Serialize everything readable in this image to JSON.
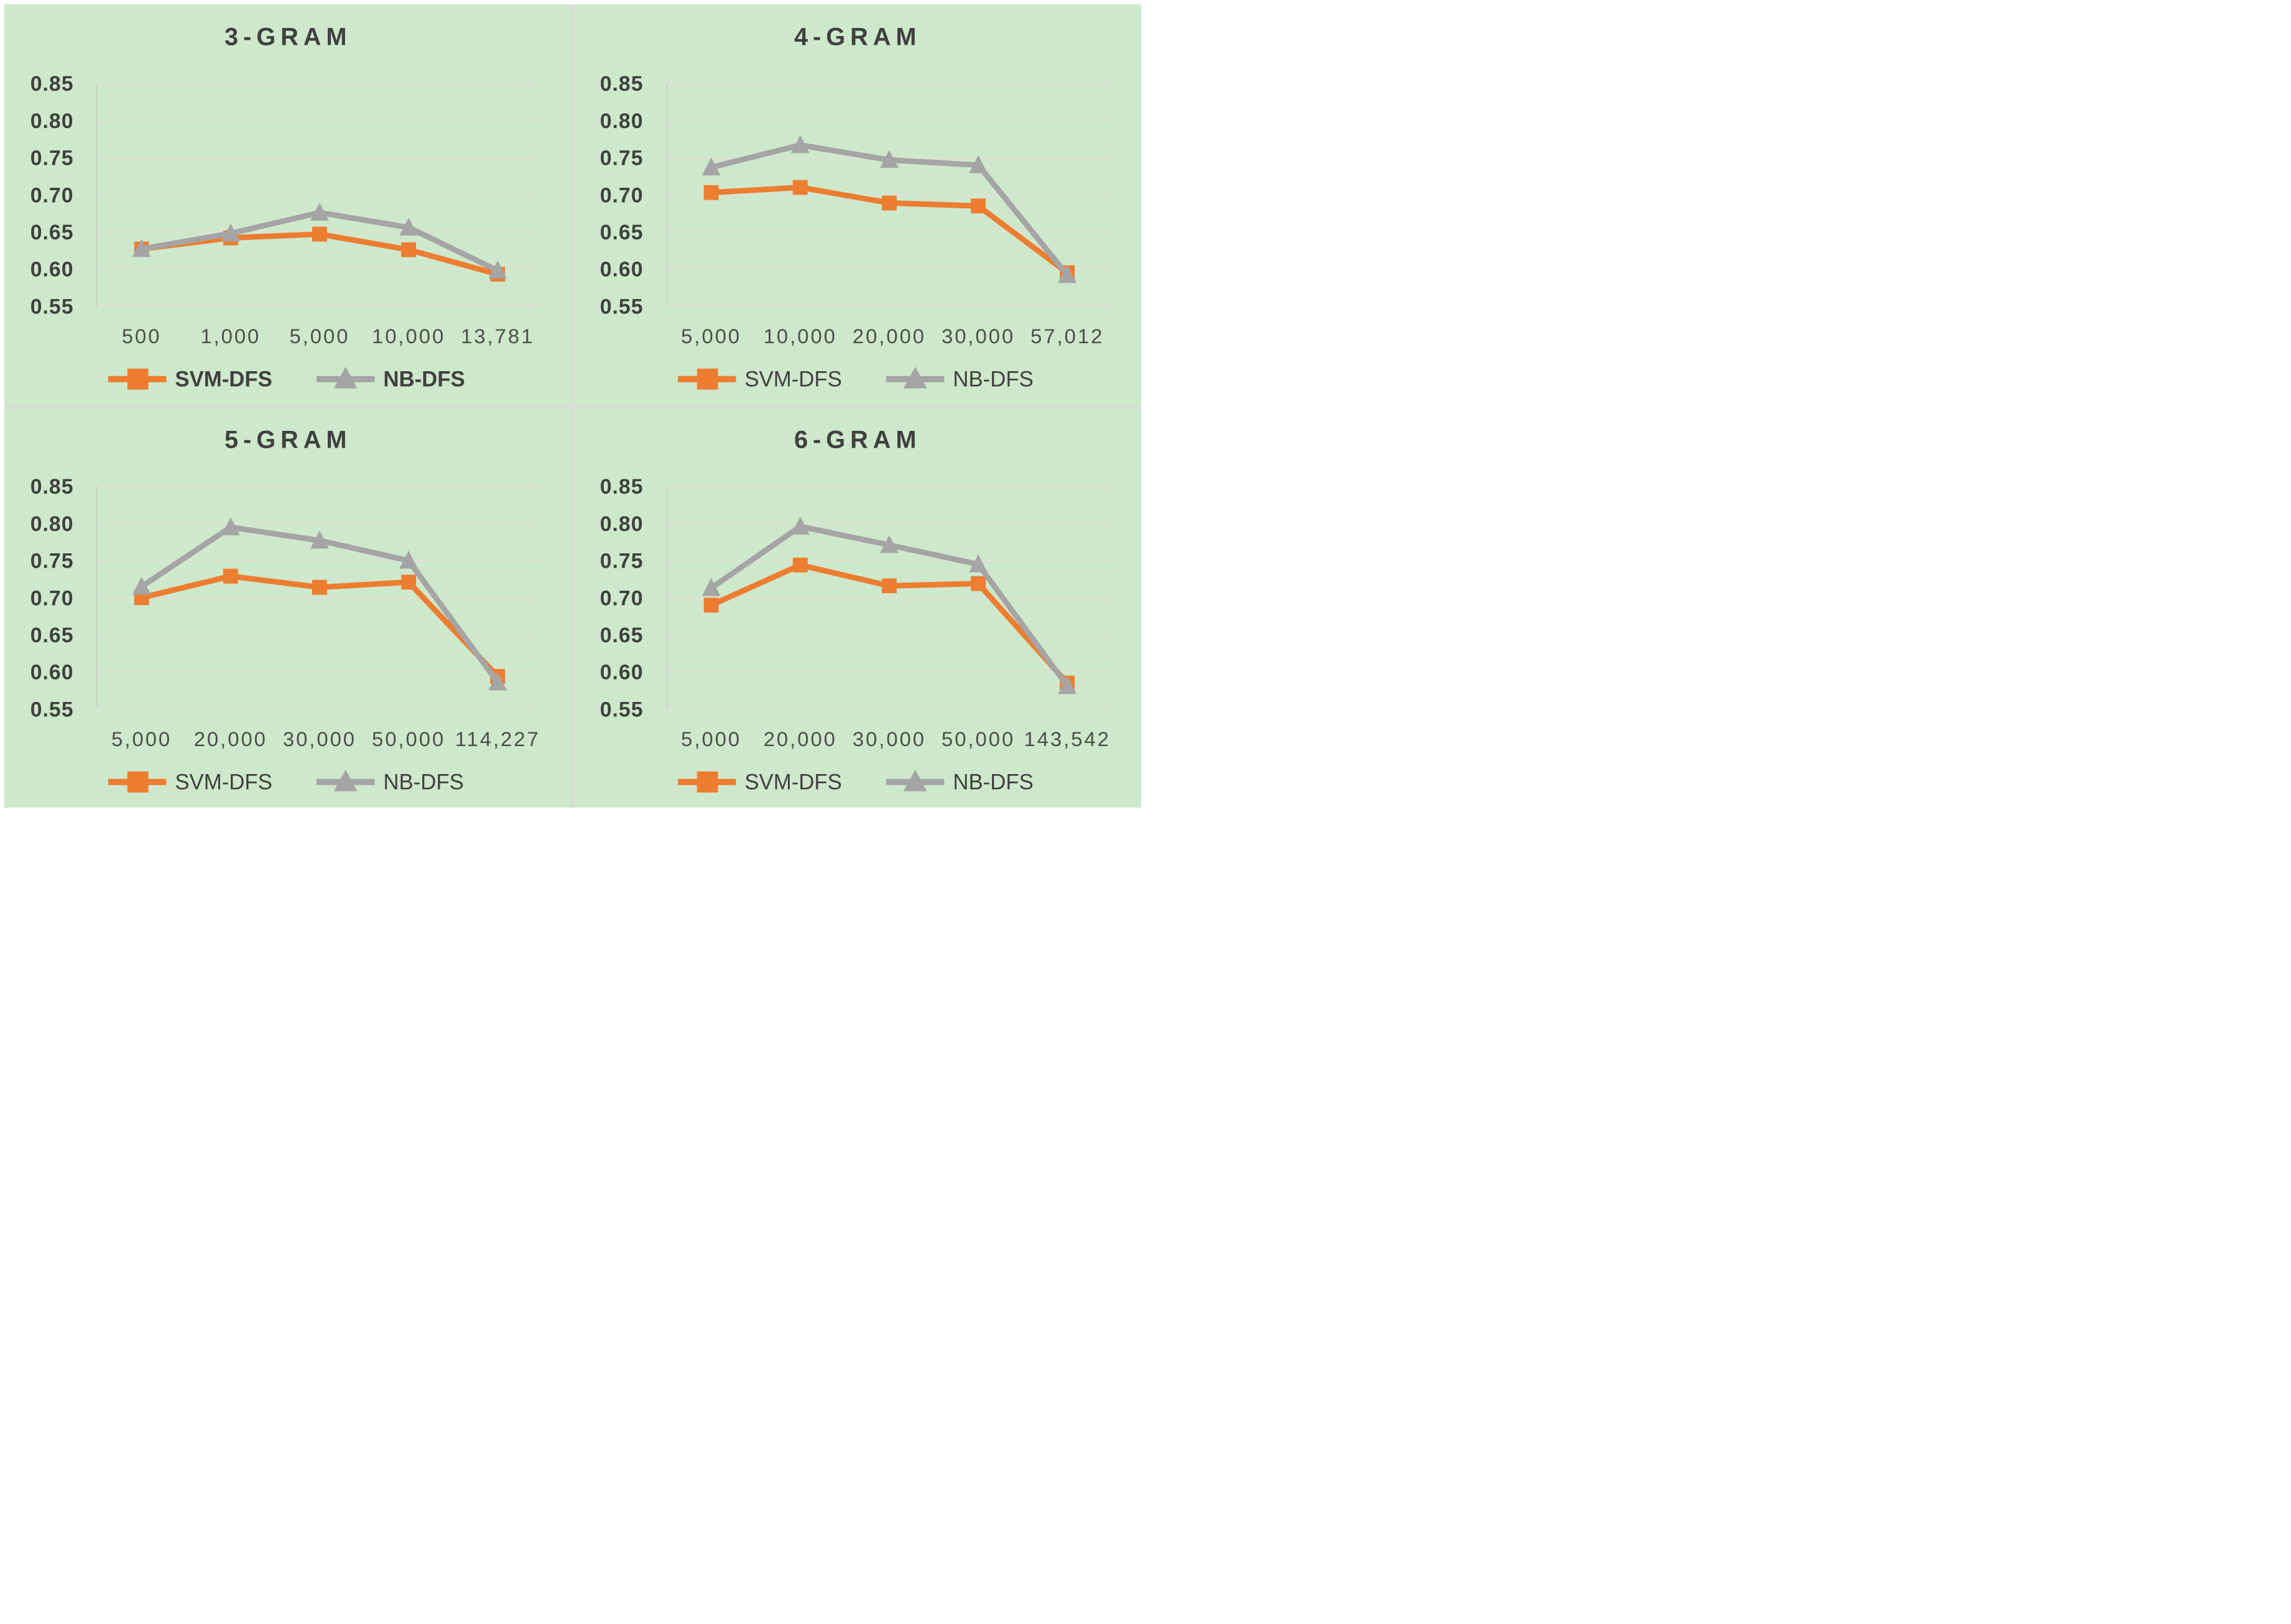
{
  "page": {
    "background": "#ffffff",
    "panel_background": "#cee8cb",
    "divider_color": "#d9d9d9"
  },
  "colors": {
    "svm_orange": "#ED7D31",
    "nb_gray": "#A5A5A5",
    "title_text": "#404040",
    "ytick_text": "#3e423e",
    "xtick_text": "#4a4f4a",
    "gridline": "#e3e0d8",
    "axis_line": "#c5cbbf"
  },
  "legend": {
    "svm_label": "SVM-DFS",
    "nb_label": "NB-DFS"
  },
  "chart_data": [
    {
      "type": "line",
      "title": "3-GRAM",
      "categories": [
        "500",
        "1,000",
        "5,000",
        "10,000",
        "13,781"
      ],
      "series": [
        {
          "name": "SVM-DFS",
          "marker": "square",
          "color": "#ED7D31",
          "values": [
            0.627,
            0.642,
            0.647,
            0.626,
            0.593
          ]
        },
        {
          "name": "NB-DFS",
          "marker": "triangle",
          "color": "#A5A5A5",
          "values": [
            0.627,
            0.648,
            0.676,
            0.656,
            0.598
          ]
        }
      ],
      "ylim": [
        0.55,
        0.85
      ],
      "yticks": [
        "0.85",
        "0.80",
        "0.75",
        "0.70",
        "0.65",
        "0.60",
        "0.55"
      ],
      "grid": true,
      "legend_position": "bottom",
      "legend_bold": true
    },
    {
      "type": "line",
      "title": "4-GRAM",
      "categories": [
        "5,000",
        "10,000",
        "20,000",
        "30,000",
        "57,012"
      ],
      "series": [
        {
          "name": "SVM-DFS",
          "marker": "square",
          "color": "#ED7D31",
          "values": [
            0.703,
            0.71,
            0.689,
            0.685,
            0.595
          ]
        },
        {
          "name": "NB-DFS",
          "marker": "triangle",
          "color": "#A5A5A5",
          "values": [
            0.737,
            0.767,
            0.747,
            0.74,
            0.592
          ]
        }
      ],
      "ylim": [
        0.55,
        0.85
      ],
      "yticks": [
        "0.85",
        "0.80",
        "0.75",
        "0.70",
        "0.65",
        "0.60",
        "0.55"
      ],
      "grid": true,
      "legend_position": "bottom",
      "legend_bold": false
    },
    {
      "type": "line",
      "title": "5-GRAM",
      "categories": [
        "5,000",
        "20,000",
        "30,000",
        "50,000",
        "114,227"
      ],
      "series": [
        {
          "name": "SVM-DFS",
          "marker": "square",
          "color": "#ED7D31",
          "values": [
            0.7,
            0.729,
            0.714,
            0.721,
            0.594
          ]
        },
        {
          "name": "NB-DFS",
          "marker": "triangle",
          "color": "#A5A5A5",
          "values": [
            0.715,
            0.795,
            0.777,
            0.75,
            0.586
          ]
        }
      ],
      "ylim": [
        0.55,
        0.85
      ],
      "yticks": [
        "0.85",
        "0.80",
        "0.75",
        "0.70",
        "0.65",
        "0.60",
        "0.55"
      ],
      "grid": true,
      "legend_position": "bottom",
      "legend_bold": false
    },
    {
      "type": "line",
      "title": "6-GRAM",
      "categories": [
        "5,000",
        "20,000",
        "30,000",
        "50,000",
        "143,542"
      ],
      "series": [
        {
          "name": "SVM-DFS",
          "marker": "square",
          "color": "#ED7D31",
          "values": [
            0.69,
            0.744,
            0.716,
            0.719,
            0.585
          ]
        },
        {
          "name": "NB-DFS",
          "marker": "triangle",
          "color": "#A5A5A5",
          "values": [
            0.713,
            0.796,
            0.771,
            0.745,
            0.581
          ]
        }
      ],
      "ylim": [
        0.55,
        0.85
      ],
      "yticks": [
        "0.85",
        "0.80",
        "0.75",
        "0.70",
        "0.65",
        "0.60",
        "0.55"
      ],
      "grid": true,
      "legend_position": "bottom",
      "legend_bold": false
    }
  ]
}
